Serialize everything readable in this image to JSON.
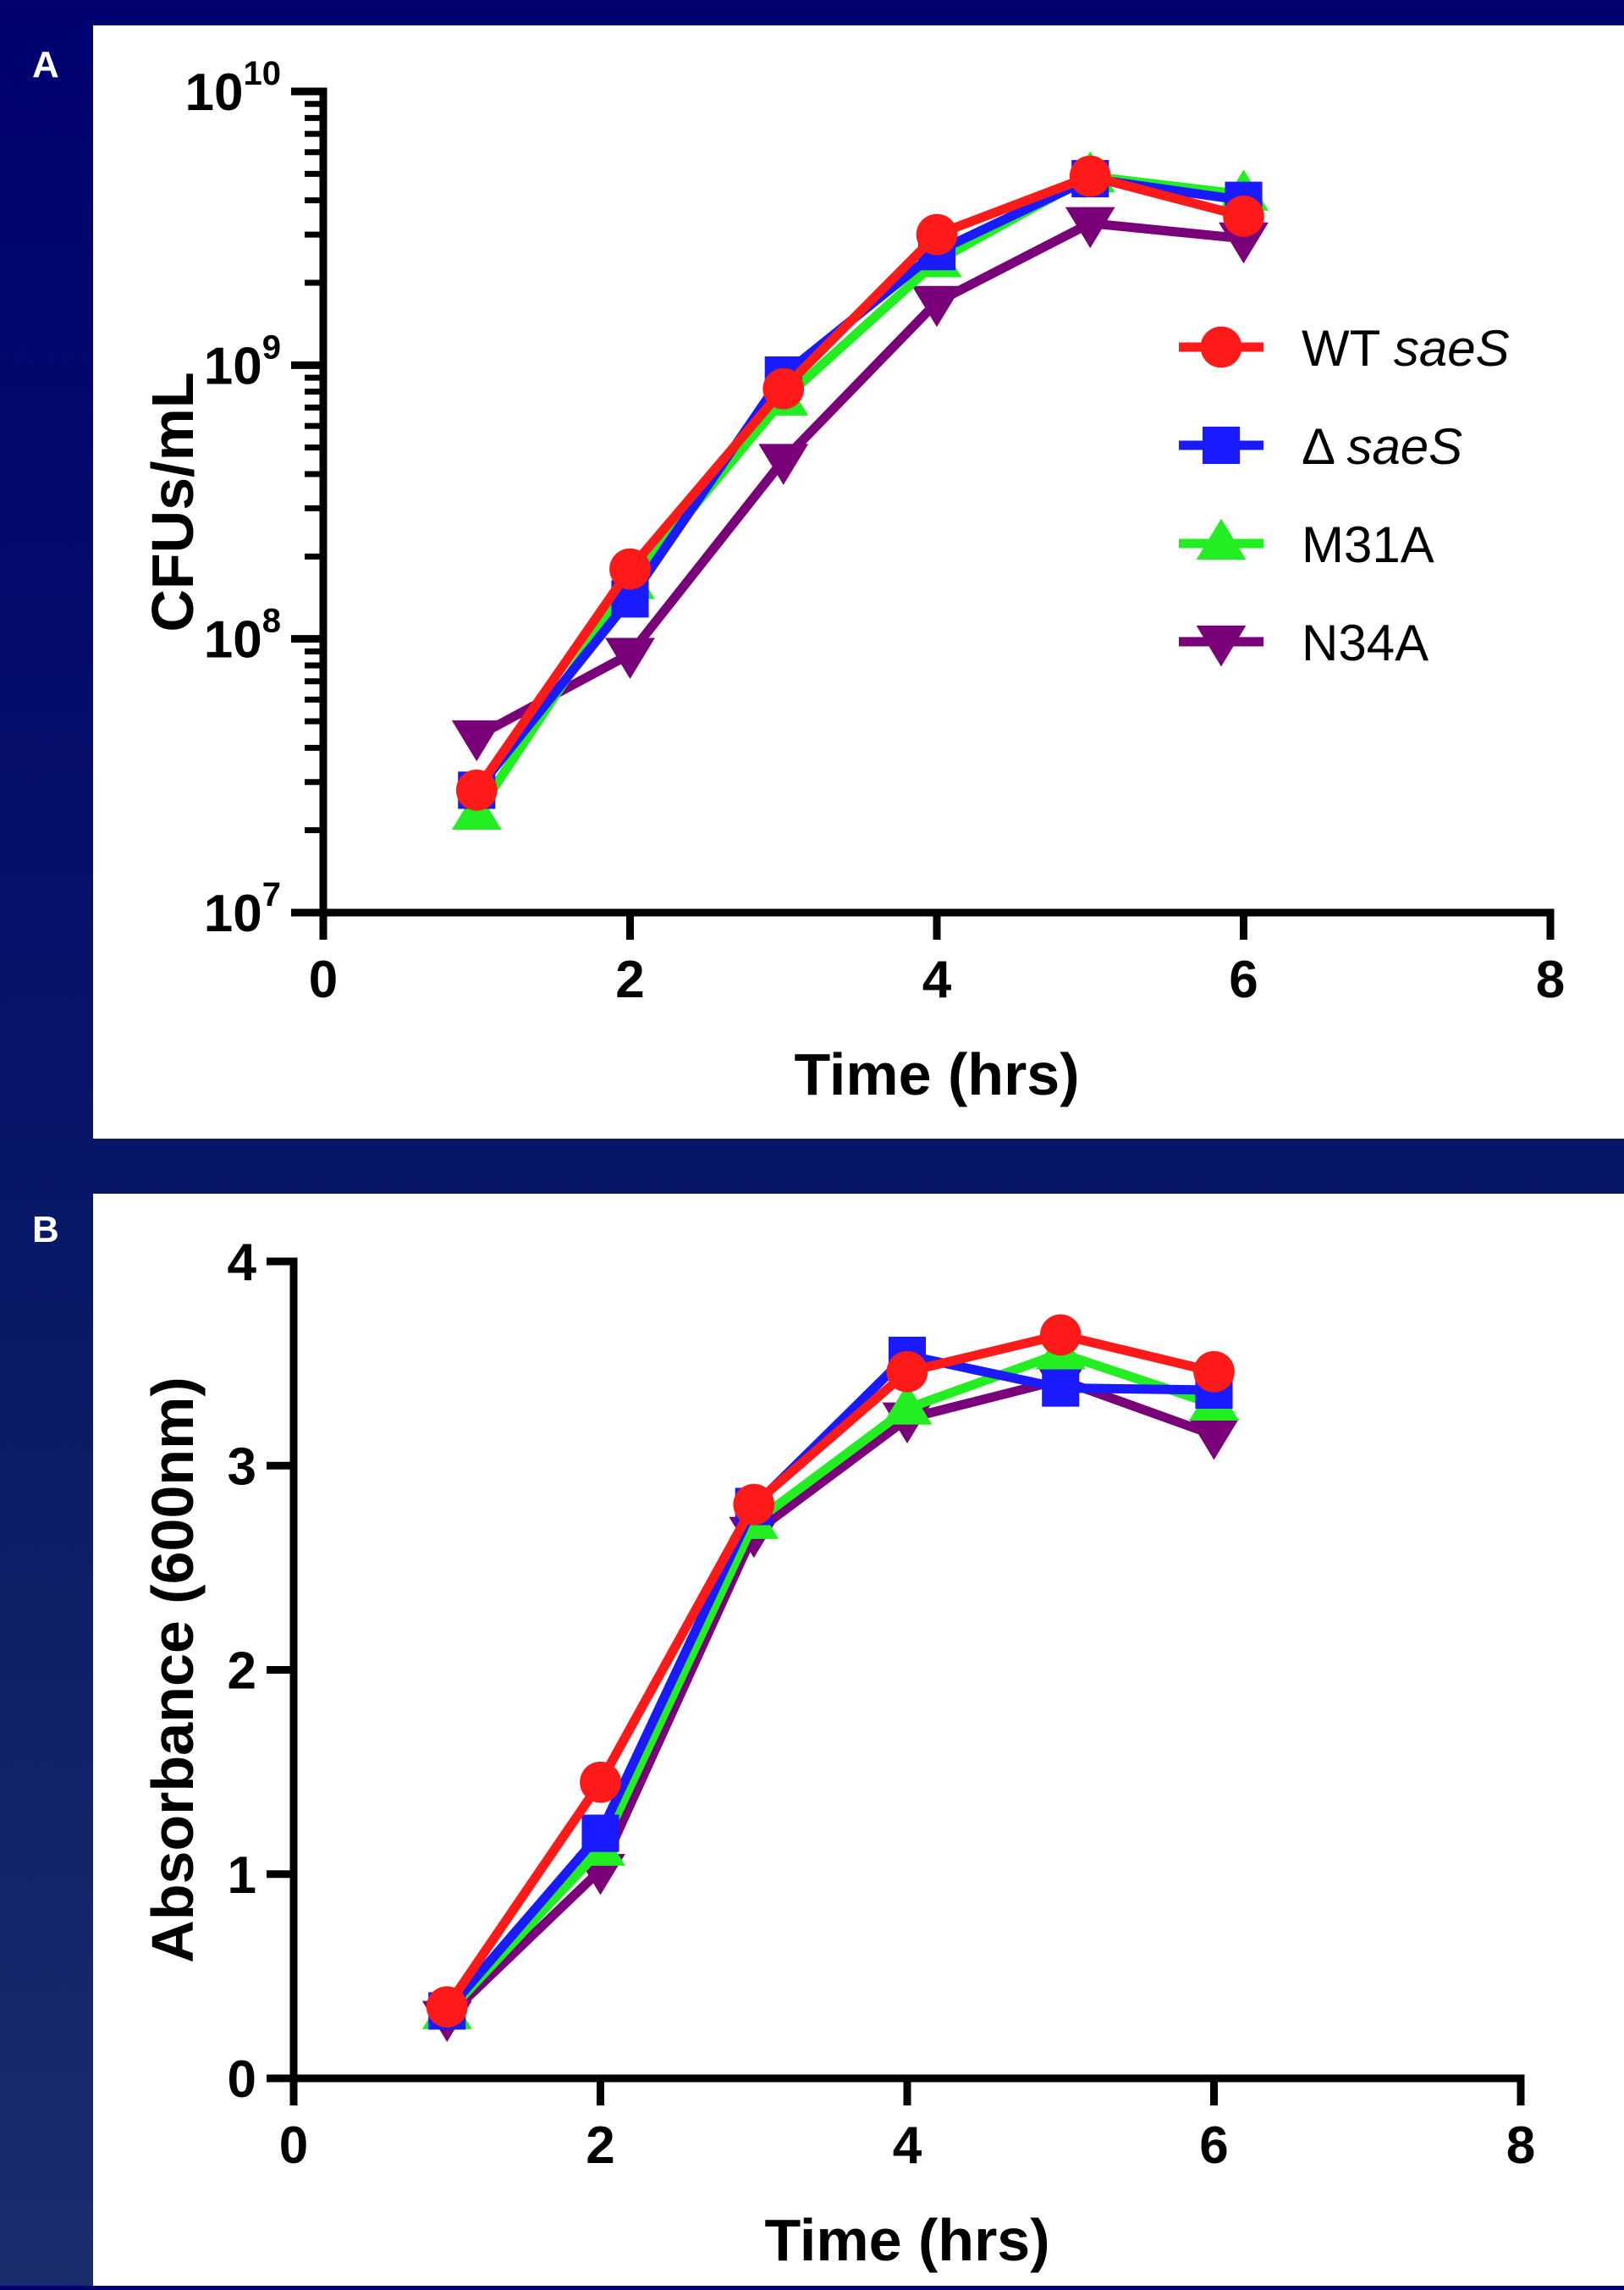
{
  "panels": {
    "a": {
      "letter": "A"
    },
    "b": {
      "letter": "B"
    }
  },
  "legend": [
    {
      "name": "WT saeS",
      "prefix": "WT ",
      "italic": "saeS",
      "color": "#ff1a1a",
      "marker": "circle"
    },
    {
      "name": "Δ saeS",
      "prefix": "Δ ",
      "italic": "saeS",
      "color": "#1a1aff",
      "marker": "square"
    },
    {
      "name": "M31A",
      "prefix": "M31A",
      "italic": "",
      "color": "#22ee22",
      "marker": "triangle-up"
    },
    {
      "name": "N34A",
      "prefix": "N34A",
      "italic": "",
      "color": "#7a007a",
      "marker": "triangle-down"
    }
  ],
  "chart_data": [
    {
      "type": "line",
      "panel": "A",
      "xlabel": "Time (hrs)",
      "ylabel": "CFUs/mL",
      "xlim": [
        0,
        8
      ],
      "ylim": [
        10000000,
        10000000000
      ],
      "yscale": "log",
      "xticks": [
        "0",
        "2",
        "4",
        "6",
        "8"
      ],
      "yticks": [
        {
          "base": "10",
          "exp": "7"
        },
        {
          "base": "10",
          "exp": "8"
        },
        {
          "base": "10",
          "exp": "9"
        },
        {
          "base": "10",
          "exp": "10"
        }
      ],
      "legend_position": "right",
      "x": [
        1,
        2,
        3,
        4,
        5,
        6
      ],
      "series": [
        {
          "name": "N34A",
          "values": [
            44000000,
            88000000,
            450000000,
            1700000000,
            3300000000,
            2900000000
          ]
        },
        {
          "name": "M31A",
          "values": [
            23000000,
            160000000,
            750000000,
            2400000000,
            4900000000,
            4200000000
          ]
        },
        {
          "name": "Δ saeS",
          "values": [
            28000000,
            140000000,
            920000000,
            2600000000,
            4800000000,
            4000000000
          ]
        },
        {
          "name": "WT saeS",
          "values": [
            28000000,
            180000000,
            820000000,
            3000000000,
            4900000000,
            3500000000
          ]
        }
      ]
    },
    {
      "type": "line",
      "panel": "B",
      "xlabel": "Time (hrs)",
      "ylabel": "Absorbance (600nm)",
      "xlim": [
        0,
        8
      ],
      "ylim": [
        0,
        4
      ],
      "yscale": "linear",
      "xticks": [
        "0",
        "2",
        "4",
        "6",
        "8"
      ],
      "yticks": [
        "0",
        "1",
        "2",
        "3",
        "4"
      ],
      "x": [
        1,
        2,
        3,
        4,
        5,
        6
      ],
      "series": [
        {
          "name": "N34A",
          "values": [
            0.3,
            1.02,
            2.67,
            3.23,
            3.42,
            3.15
          ]
        },
        {
          "name": "M31A",
          "values": [
            0.32,
            1.12,
            2.72,
            3.28,
            3.55,
            3.3
          ]
        },
        {
          "name": "Δ saeS",
          "values": [
            0.33,
            1.2,
            2.8,
            3.54,
            3.38,
            3.37
          ]
        },
        {
          "name": "WT saeS",
          "values": [
            0.35,
            1.45,
            2.81,
            3.46,
            3.64,
            3.46
          ]
        }
      ]
    }
  ]
}
